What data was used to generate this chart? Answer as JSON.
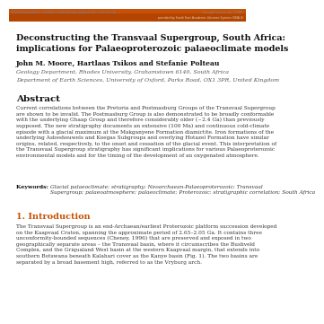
{
  "bg_color": "#ffffff",
  "header_bar1_color": "#c8510a",
  "header_bar2_color": "#b34500",
  "top_link_text": "View metadata, citation and similar papers at core.ac.uk",
  "top_right_text": "brought to you by  CORE",
  "top_right2_text": "provided by South East Academic Libraries System (SEALS)",
  "title": "Deconstructing the Transvaal Supergroup, South Africa:\nimplications for Palaeoproterozoic palaeoclimate models",
  "authors": "John M. Moore, Hartlaas Tsikos and Stefanie Polteau",
  "affil1": "Geology Department, Rhodes University, Grahamstown 6140, South Africa",
  "affil2": "Department of Earth Sciences, University of Oxford, Parks Road, OX1 3PR, United Kingdom",
  "abstract_title": "Abstract",
  "abstract_text": "Current correlations between the Pretoria and Postmasburg Groups of the Transvaal Supergroup\nare shown to be invalid. The Postmasburg Group is also demonstrated to be broadly conformable\nwith the underlying Ghaap Group and therefore considerably older (~2.4 Ga) than previously\nsupposed. The new stratigraphy documents an extensive (100 Ma) and continuous cold-climate\nepisode with a glacial maximum at the Makganyene Formation diamictite. Iron formations of the\nunderlying Asbesheuwels and Koegas Subgroups and overlying Hotazel Formation have similar\norigins, related, respectively, to the onset and cessation of the glacial event. This interpretation of\nthe Transvaal Supergroup stratigraphy has significant implications for various Palaeoproterozoic\nenvironmental models and for the timing of the development of an oxygenated atmosphere.",
  "keywords_label": "Keywords: ",
  "keywords_text": "Glacial palaeoclimate; stratigraphy; Neoarchaean-Palaeoproterozoic; Transvaal\nSupergroup; palaeoatmosphere; palaeoclimate; Proterozoic; stratigraphic correlation; South Africa",
  "section1_title": "1. Introduction",
  "section1_text": "The Transvaal Supergroup is an end-Archaean/earliest Proterozoic platform succession developed\non the Kaapvaal Craton, spanning the approximate period of 2.65–2.05 Ga. It contains three\nunconformity-bounded sequences (Cheney, 1996) that are preserved and exposed in two\ngeographically separate areas – the Transvaal basin, where it circumscribes the Bushveld\nComplex, and the Griqualand West basin at the western Kaapvaal margin, that extends into\nsouthern Botswana beneath Kalahari cover as the Kanye basin (Fig. 1). The two basins are\nseparated by a broad basement high, referred to as the Vryburg arch."
}
